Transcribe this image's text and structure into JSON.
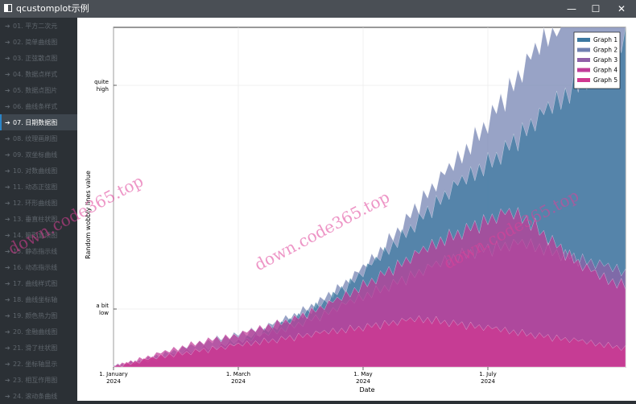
{
  "window": {
    "title": "qcustomplot示例",
    "controls": {
      "minimize": "—",
      "maximize": "☐",
      "close": "✕"
    }
  },
  "sidebar": {
    "items": [
      {
        "label": "01. 平方二次元"
      },
      {
        "label": "02. 简单曲线图"
      },
      {
        "label": "03. 正弦散点图"
      },
      {
        "label": "04. 数据点样式"
      },
      {
        "label": "05. 数据点图片"
      },
      {
        "label": "06. 曲线条样式"
      },
      {
        "label": "07. 日期数据图"
      },
      {
        "label": "08. 纹理画刷图"
      },
      {
        "label": "09. 双坐标曲线"
      },
      {
        "label": "10. 对数曲线图"
      },
      {
        "label": "11. 动态正弦图"
      },
      {
        "label": "12. 环形曲线图"
      },
      {
        "label": "13. 垂直柱状图"
      },
      {
        "label": "14. 箱形盒须图"
      },
      {
        "label": "15. 静态指示线"
      },
      {
        "label": "16. 动态指示线"
      },
      {
        "label": "17. 曲线样式图"
      },
      {
        "label": "18. 曲线坐标轴"
      },
      {
        "label": "19. 颜色热力图"
      },
      {
        "label": "20. 金融曲线图"
      },
      {
        "label": "21. 滑了柱状图"
      },
      {
        "label": "22. 坐标轴显示"
      },
      {
        "label": "23. 相互作用图"
      },
      {
        "label": "24. 滚动条曲线"
      }
    ],
    "active_index": 6
  },
  "chart_data": {
    "type": "area",
    "xlabel": "Date",
    "ylabel": "Random wobbly lines value",
    "x_tick_labels": [
      {
        "date": "1. January",
        "year": "2024"
      },
      {
        "date": "1. March",
        "year": "2024"
      },
      {
        "date": "1. May",
        "year": "2024"
      },
      {
        "date": "1. July",
        "year": "2024"
      }
    ],
    "y_tick_labels": [
      {
        "line1": "quite",
        "line2": "high"
      },
      {
        "line1": "a bit",
        "line2": "low"
      }
    ],
    "legend_position": "top-right",
    "series": [
      {
        "name": "Graph 1",
        "color": "#3c78a0",
        "values": [
          0,
          2,
          4,
          7,
          10,
          12,
          15,
          18,
          22,
          26,
          30,
          35,
          40,
          46,
          52,
          60,
          68,
          78,
          88,
          100,
          112,
          125,
          138,
          152,
          165,
          178,
          190,
          200,
          210,
          220,
          232,
          245,
          258,
          270,
          282,
          295,
          308,
          320,
          335,
          350
        ]
      },
      {
        "name": "Graph 2",
        "color": "#7080b0",
        "values": [
          0,
          3,
          6,
          10,
          14,
          18,
          22,
          26,
          30,
          33,
          36,
          40,
          44,
          50,
          56,
          64,
          72,
          82,
          92,
          104,
          118,
          134,
          150,
          168,
          185,
          200,
          215,
          232,
          250,
          270,
          290,
          310,
          330,
          350,
          370,
          395,
          420,
          445,
          470,
          500
        ]
      },
      {
        "name": "Graph 3",
        "color": "#9060a8",
        "values": [
          0,
          3,
          6,
          9,
          12,
          15,
          18,
          20,
          22,
          25,
          28,
          32,
          36,
          40,
          45,
          50,
          55,
          62,
          68,
          74,
          80,
          86,
          92,
          98,
          104,
          110,
          116,
          120,
          124,
          126,
          128,
          130,
          128,
          124,
          120,
          116,
          112,
          108,
          104,
          100
        ]
      },
      {
        "name": "Graph 4",
        "color": "#c03c98",
        "values": [
          0,
          4,
          8,
          12,
          16,
          20,
          24,
          28,
          30,
          32,
          36,
          40,
          44,
          48,
          52,
          58,
          64,
          70,
          78,
          86,
          94,
          102,
          110,
          118,
          126,
          134,
          140,
          146,
          152,
          158,
          162,
          160,
          150,
          138,
          126,
          114,
          104,
          96,
          90,
          86
        ]
      },
      {
        "name": "Graph 5",
        "color": "#d03890",
        "values": [
          0,
          3,
          6,
          9,
          12,
          14,
          16,
          18,
          20,
          22,
          24,
          26,
          28,
          30,
          32,
          34,
          36,
          38,
          40,
          42,
          44,
          46,
          48,
          50,
          50,
          48,
          46,
          44,
          42,
          40,
          38,
          36,
          34,
          32,
          30,
          28,
          26,
          24,
          22,
          20
        ]
      }
    ]
  },
  "watermark": {
    "text": "down.code365.top"
  }
}
